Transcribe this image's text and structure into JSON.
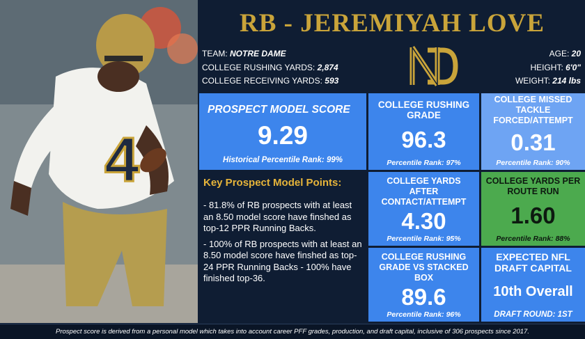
{
  "header": {
    "title": "RB - JEREMIYAH LOVE"
  },
  "info_left": [
    {
      "label": "TEAM: ",
      "value": "NOTRE DAME"
    },
    {
      "label": "COLLEGE RUSHING YARDS: ",
      "value": "2,874"
    },
    {
      "label": "COLLEGE RECEIVING YARDS: ",
      "value": "593"
    }
  ],
  "info_right": [
    {
      "label": "AGE: ",
      "value": "20"
    },
    {
      "label": "HEIGHT: ",
      "value": "6'0\""
    },
    {
      "label": "WEIGHT: ",
      "value": "214 lbs"
    }
  ],
  "tiles": {
    "prospect_model": {
      "label": "PROSPECT MODEL SCORE",
      "value": "9.29",
      "sub": "Historical Percentile Rank: 99%"
    },
    "rushing_grade": {
      "label": "COLLEGE RUSHING GRADE",
      "value": "96.3",
      "sub": "Percentile Rank: 97%"
    },
    "missed_tackle": {
      "label": "COLLEGE MISSED TACKLE FORCED/ATTEMPT",
      "value": "0.31",
      "sub": "Percentile Rank: 90%"
    },
    "yards_after_contact": {
      "label": "COLLEGE YARDS AFTER CONTACT/ATTEMPT",
      "value": "4.30",
      "sub": "Percentile Rank: 95%"
    },
    "yprr": {
      "label": "COLLEGE YARDS PER ROUTE RUN",
      "value": "1.60",
      "sub": "Percentile Rank: 88%"
    },
    "stacked_box": {
      "label": "COLLEGE RUSHING GRADE vs STACKED BOX",
      "value": "89.6",
      "sub": "Percentile Rank: 96%"
    },
    "draft_capital": {
      "label": "EXPECTED NFL DRAFT CAPITAL",
      "value": "10th Overall",
      "sub": "DRAFT ROUND: 1ST"
    }
  },
  "key_points": {
    "title": "Key Prospect Model Points:",
    "items": [
      "- 81.8% of RB prospects with at least an 8.50 model score have finshed as top-12 PPR Running Backs.",
      "- 100% of RB prospects with at least an 8.50 model score have finshed as top-24 PPR Running Backs - 100% have finished top-36."
    ]
  },
  "footer": {
    "text": "Prospect score is derived from a personal model which takes into account career PFF grades, production, and draft capital, inclusive of 306 prospects since 2017."
  },
  "icons": {
    "logo": "notre-dame-monogram-logo",
    "photo": "player-photo"
  },
  "colors": {
    "background": "#0f1d33",
    "gold": "#c9a43a",
    "tile_blue": "#3d85ec",
    "tile_light_blue": "#6ea4f3",
    "tile_green": "#4caa4e"
  }
}
